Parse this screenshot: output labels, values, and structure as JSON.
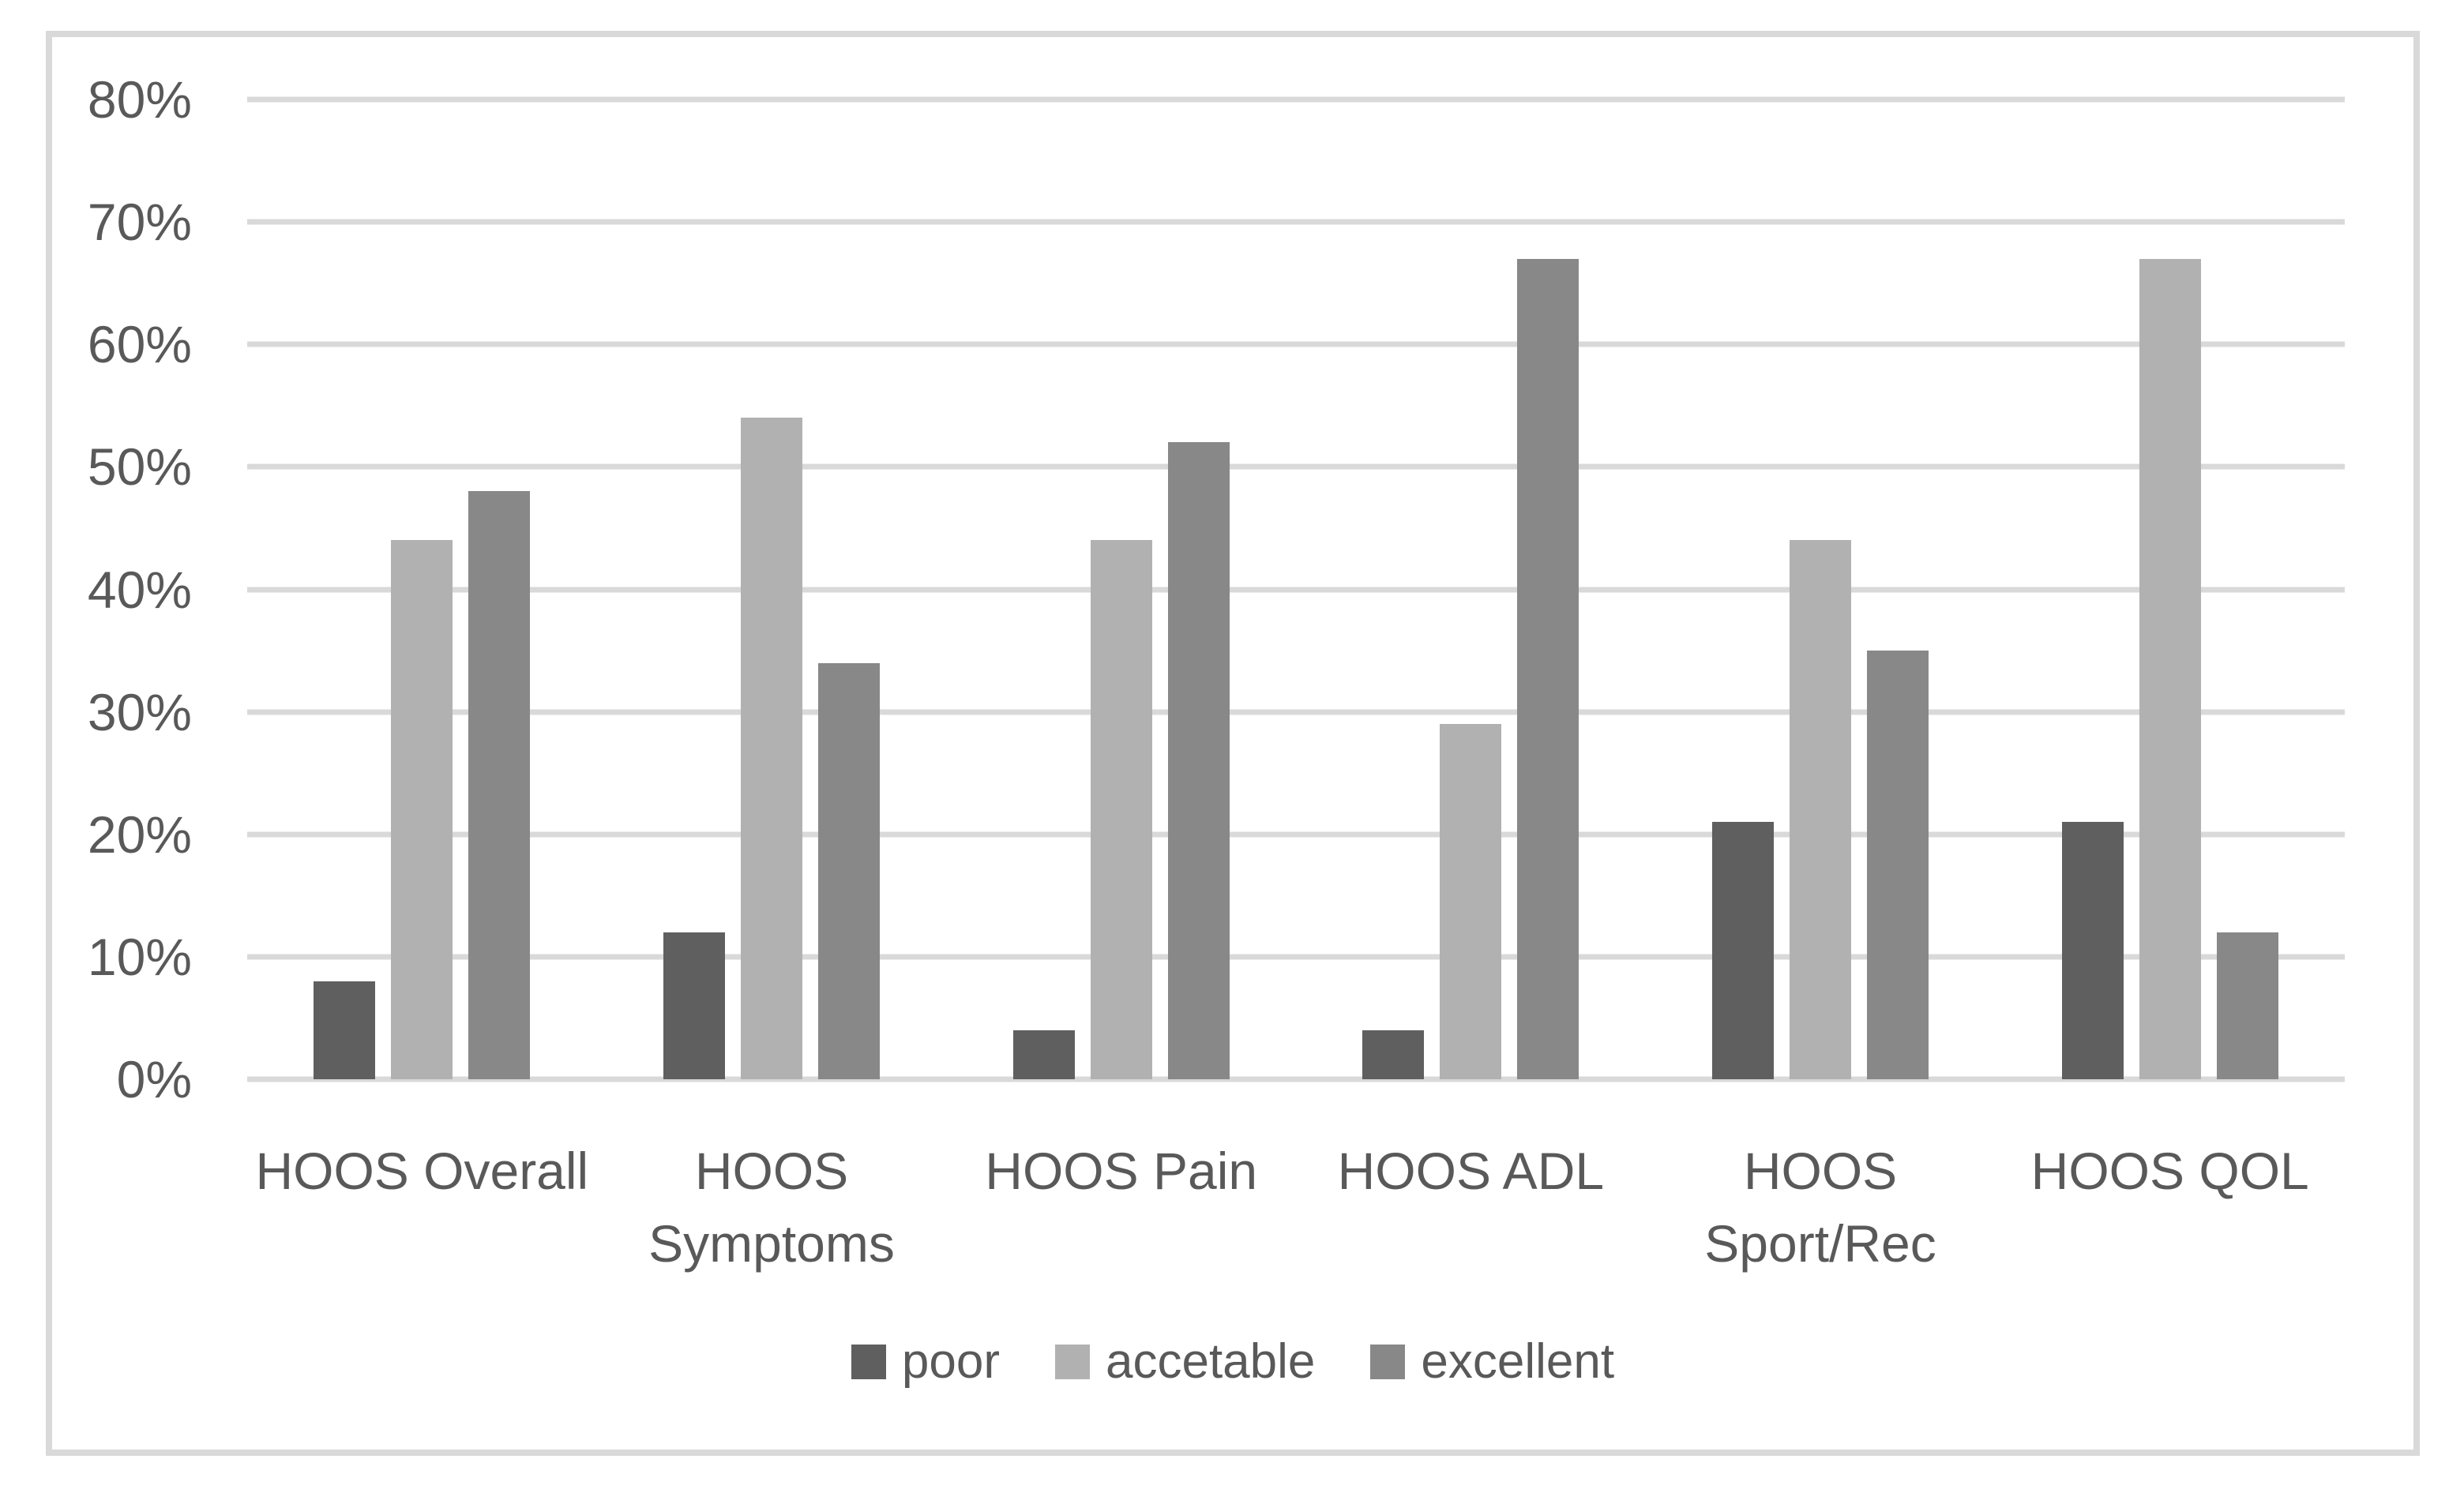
{
  "chart_data": {
    "type": "bar",
    "title": "",
    "categories": [
      "HOOS Overall",
      "HOOS Symptoms",
      "HOOS Pain",
      "HOOS ADL",
      "HOOS Sport/Rec",
      "HOOS QOL"
    ],
    "categories_display_lines": [
      [
        "HOOS Overall"
      ],
      [
        "HOOS",
        "Symptoms"
      ],
      [
        "HOOS Pain"
      ],
      [
        "HOOS ADL"
      ],
      [
        "HOOS",
        "Sport/Rec"
      ],
      [
        "HOOS QOL"
      ]
    ],
    "series": [
      {
        "name": "poor",
        "color": "#5f5f5f",
        "values": [
          8,
          12,
          4,
          4,
          21,
          21
        ]
      },
      {
        "name": "accetable",
        "color": "#b1b1b1",
        "values": [
          44,
          54,
          44,
          29,
          44,
          67
        ]
      },
      {
        "name": "excellent",
        "color": "#888888",
        "values": [
          48,
          34,
          52,
          67,
          35,
          12
        ]
      }
    ],
    "y_axis": {
      "min": 0,
      "max": 80,
      "step": 10,
      "tick_labels": [
        "0%",
        "10%",
        "20%",
        "30%",
        "40%",
        "50%",
        "60%",
        "70%",
        "80%"
      ],
      "unit": "%"
    },
    "grid": true,
    "legend": {
      "position": "bottom",
      "entries": [
        "poor",
        "accetable",
        "excellent"
      ]
    },
    "style": {
      "gridline_color": "#d9d9d9",
      "axis_text_color": "#595959",
      "frame_border_color": "#d9d9d9",
      "background": "#ffffff"
    }
  }
}
